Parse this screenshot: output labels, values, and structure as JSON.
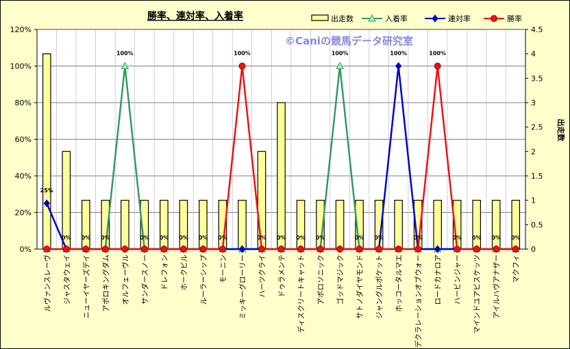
{
  "chart_data": {
    "type": "bar",
    "title": "勝率、連対率、入着率",
    "watermark": "©Caniの競馬データ研究室",
    "y2label": "出走数",
    "ylim": [
      0,
      120
    ],
    "y2lim": [
      0,
      4.5
    ],
    "y_ticks": [
      "0%",
      "20%",
      "40%",
      "60%",
      "80%",
      "100%",
      "120%"
    ],
    "y2_ticks": [
      "0",
      "0.5",
      "1",
      "1.5",
      "2",
      "2.5",
      "3",
      "3.5",
      "4",
      "4.5"
    ],
    "legend": {
      "placement": "top"
    },
    "categories": [
      "ルヴァンスレーヴ",
      "ジャスタウェイ",
      "ニューイヤーズデイ",
      "アポロキングダム",
      "オルフェーヴル",
      "サンダースノー",
      "ドレフォン",
      "ホークビル",
      "ルーラーシップ",
      "モーニン",
      "ミッキーグローリー",
      "ハーツクライ",
      "ドゥラメンテ",
      "ディスクリートキャット",
      "アポロソニック",
      "ゴッドマジック",
      "サトノダイヤモンド",
      "ジャングルポケット",
      "ホッコータルマエ",
      "デクラレーションオブウォー",
      "ロードカナロア",
      "ハービンジャー",
      "マインドユアビスケッツ",
      "アイルハヴアナザー",
      "マクフィ"
    ],
    "series": [
      {
        "name": "出走数",
        "type": "bar",
        "axis": "right",
        "color": "#ffff99",
        "values": [
          4,
          2,
          1,
          1,
          1,
          1,
          1,
          1,
          1,
          1,
          1,
          2,
          3,
          1,
          1,
          1,
          1,
          1,
          1,
          1,
          1,
          1,
          1,
          1,
          1
        ]
      },
      {
        "name": "入着率",
        "type": "line",
        "axis": "left",
        "color": "#339966",
        "marker": "triangle",
        "values": [
          0,
          0,
          0,
          0,
          100,
          0,
          0,
          0,
          0,
          0,
          0,
          0,
          0,
          0,
          0,
          100,
          0,
          0,
          0,
          0,
          0,
          0,
          0,
          0,
          0
        ]
      },
      {
        "name": "連対率",
        "type": "line",
        "axis": "left",
        "color": "#0000cc",
        "marker": "diamond",
        "values": [
          25,
          0,
          0,
          0,
          0,
          0,
          0,
          0,
          0,
          0,
          0,
          0,
          0,
          0,
          0,
          0,
          0,
          0,
          100,
          0,
          0,
          0,
          0,
          0,
          0
        ]
      },
      {
        "name": "勝率",
        "type": "line",
        "axis": "left",
        "color": "#ee1111",
        "marker": "circle",
        "values": [
          0,
          0,
          0,
          0,
          0,
          0,
          0,
          0,
          0,
          0,
          100,
          0,
          0,
          0,
          0,
          0,
          0,
          0,
          0,
          0,
          100,
          0,
          0,
          0,
          0
        ]
      }
    ],
    "data_labels": [
      {
        "category": 0,
        "text": "25%"
      },
      {
        "category": 1,
        "text": "0%"
      },
      {
        "category": 2,
        "text": "0%"
      },
      {
        "category": 3,
        "text": "0%"
      },
      {
        "category": 4,
        "text": "100%"
      },
      {
        "category": 5,
        "text": "0%"
      },
      {
        "category": 6,
        "text": "0%"
      },
      {
        "category": 7,
        "text": "0%"
      },
      {
        "category": 8,
        "text": "0%"
      },
      {
        "category": 9,
        "text": "0%"
      },
      {
        "category": 10,
        "text": "100%"
      },
      {
        "category": 11,
        "text": "0%"
      },
      {
        "category": 12,
        "text": "0%"
      },
      {
        "category": 13,
        "text": "0%"
      },
      {
        "category": 14,
        "text": "0%"
      },
      {
        "category": 15,
        "text": "100%"
      },
      {
        "category": 16,
        "text": "0%"
      },
      {
        "category": 17,
        "text": "0%"
      },
      {
        "category": 18,
        "text": "100%"
      },
      {
        "category": 19,
        "text": "0%"
      },
      {
        "category": 20,
        "text": "100%"
      },
      {
        "category": 21,
        "text": "0%"
      },
      {
        "category": 22,
        "text": "0%"
      },
      {
        "category": 23,
        "text": "0%"
      },
      {
        "category": 24,
        "text": "0%"
      }
    ],
    "grid": true
  }
}
